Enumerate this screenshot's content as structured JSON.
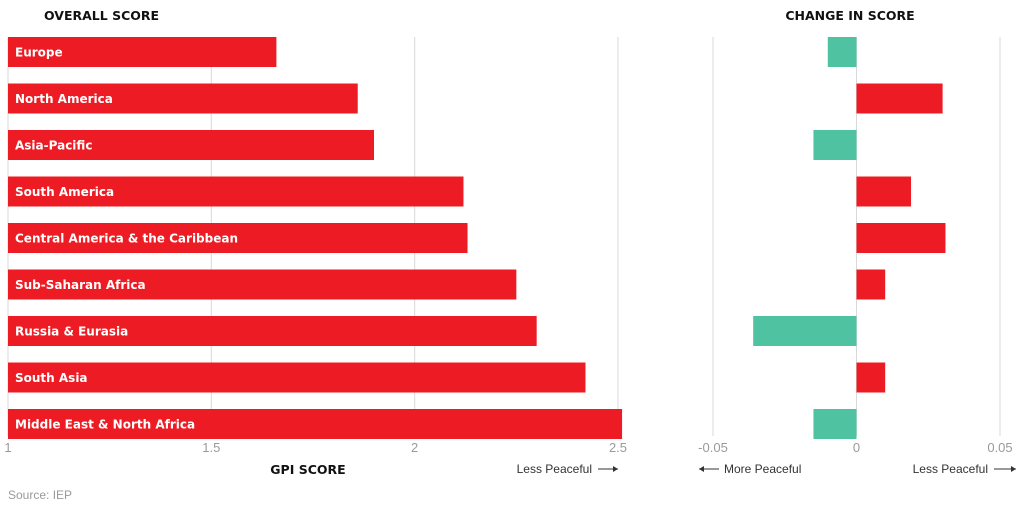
{
  "chart_data": [
    {
      "type": "bar",
      "orientation": "horizontal",
      "title": "OVERALL SCORE",
      "xlabel": "GPI SCORE",
      "annotation_right": "Less Peaceful",
      "categories": [
        "Europe",
        "North America",
        "Asia-Pacific",
        "South America",
        "Central America & the Caribbean",
        "Sub-Saharan Africa",
        "Russia & Eurasia",
        "South Asia",
        "Middle East & North Africa"
      ],
      "values": [
        1.66,
        1.86,
        1.9,
        2.12,
        2.13,
        2.25,
        2.3,
        2.42,
        2.51
      ],
      "xlim": [
        1,
        2.5
      ],
      "ticks": [
        "1",
        "1.5",
        "2",
        "2.5"
      ],
      "tick_values": [
        1,
        1.5,
        2,
        2.5
      ],
      "grid": true,
      "bar_color": "#ed1c24"
    },
    {
      "type": "bar",
      "orientation": "horizontal",
      "title": "CHANGE IN SCORE",
      "annotation_left": "More Peaceful",
      "annotation_right": "Less Peaceful",
      "categories": [
        "Europe",
        "North America",
        "Asia-Pacific",
        "South America",
        "Central America & the Caribbean",
        "Sub-Saharan Africa",
        "Russia & Eurasia",
        "South Asia",
        "Middle East & North Africa"
      ],
      "values": [
        -0.01,
        0.03,
        -0.015,
        0.019,
        0.031,
        0.01,
        -0.036,
        0.01,
        -0.015
      ],
      "xlim": [
        -0.05,
        0.05
      ],
      "ticks": [
        "-0.05",
        "0",
        "0.05"
      ],
      "tick_values": [
        -0.05,
        0,
        0.05
      ],
      "grid": true,
      "positive_color": "#ed1c24",
      "negative_color": "#4fc3a1"
    }
  ],
  "source": "Source: IEP"
}
